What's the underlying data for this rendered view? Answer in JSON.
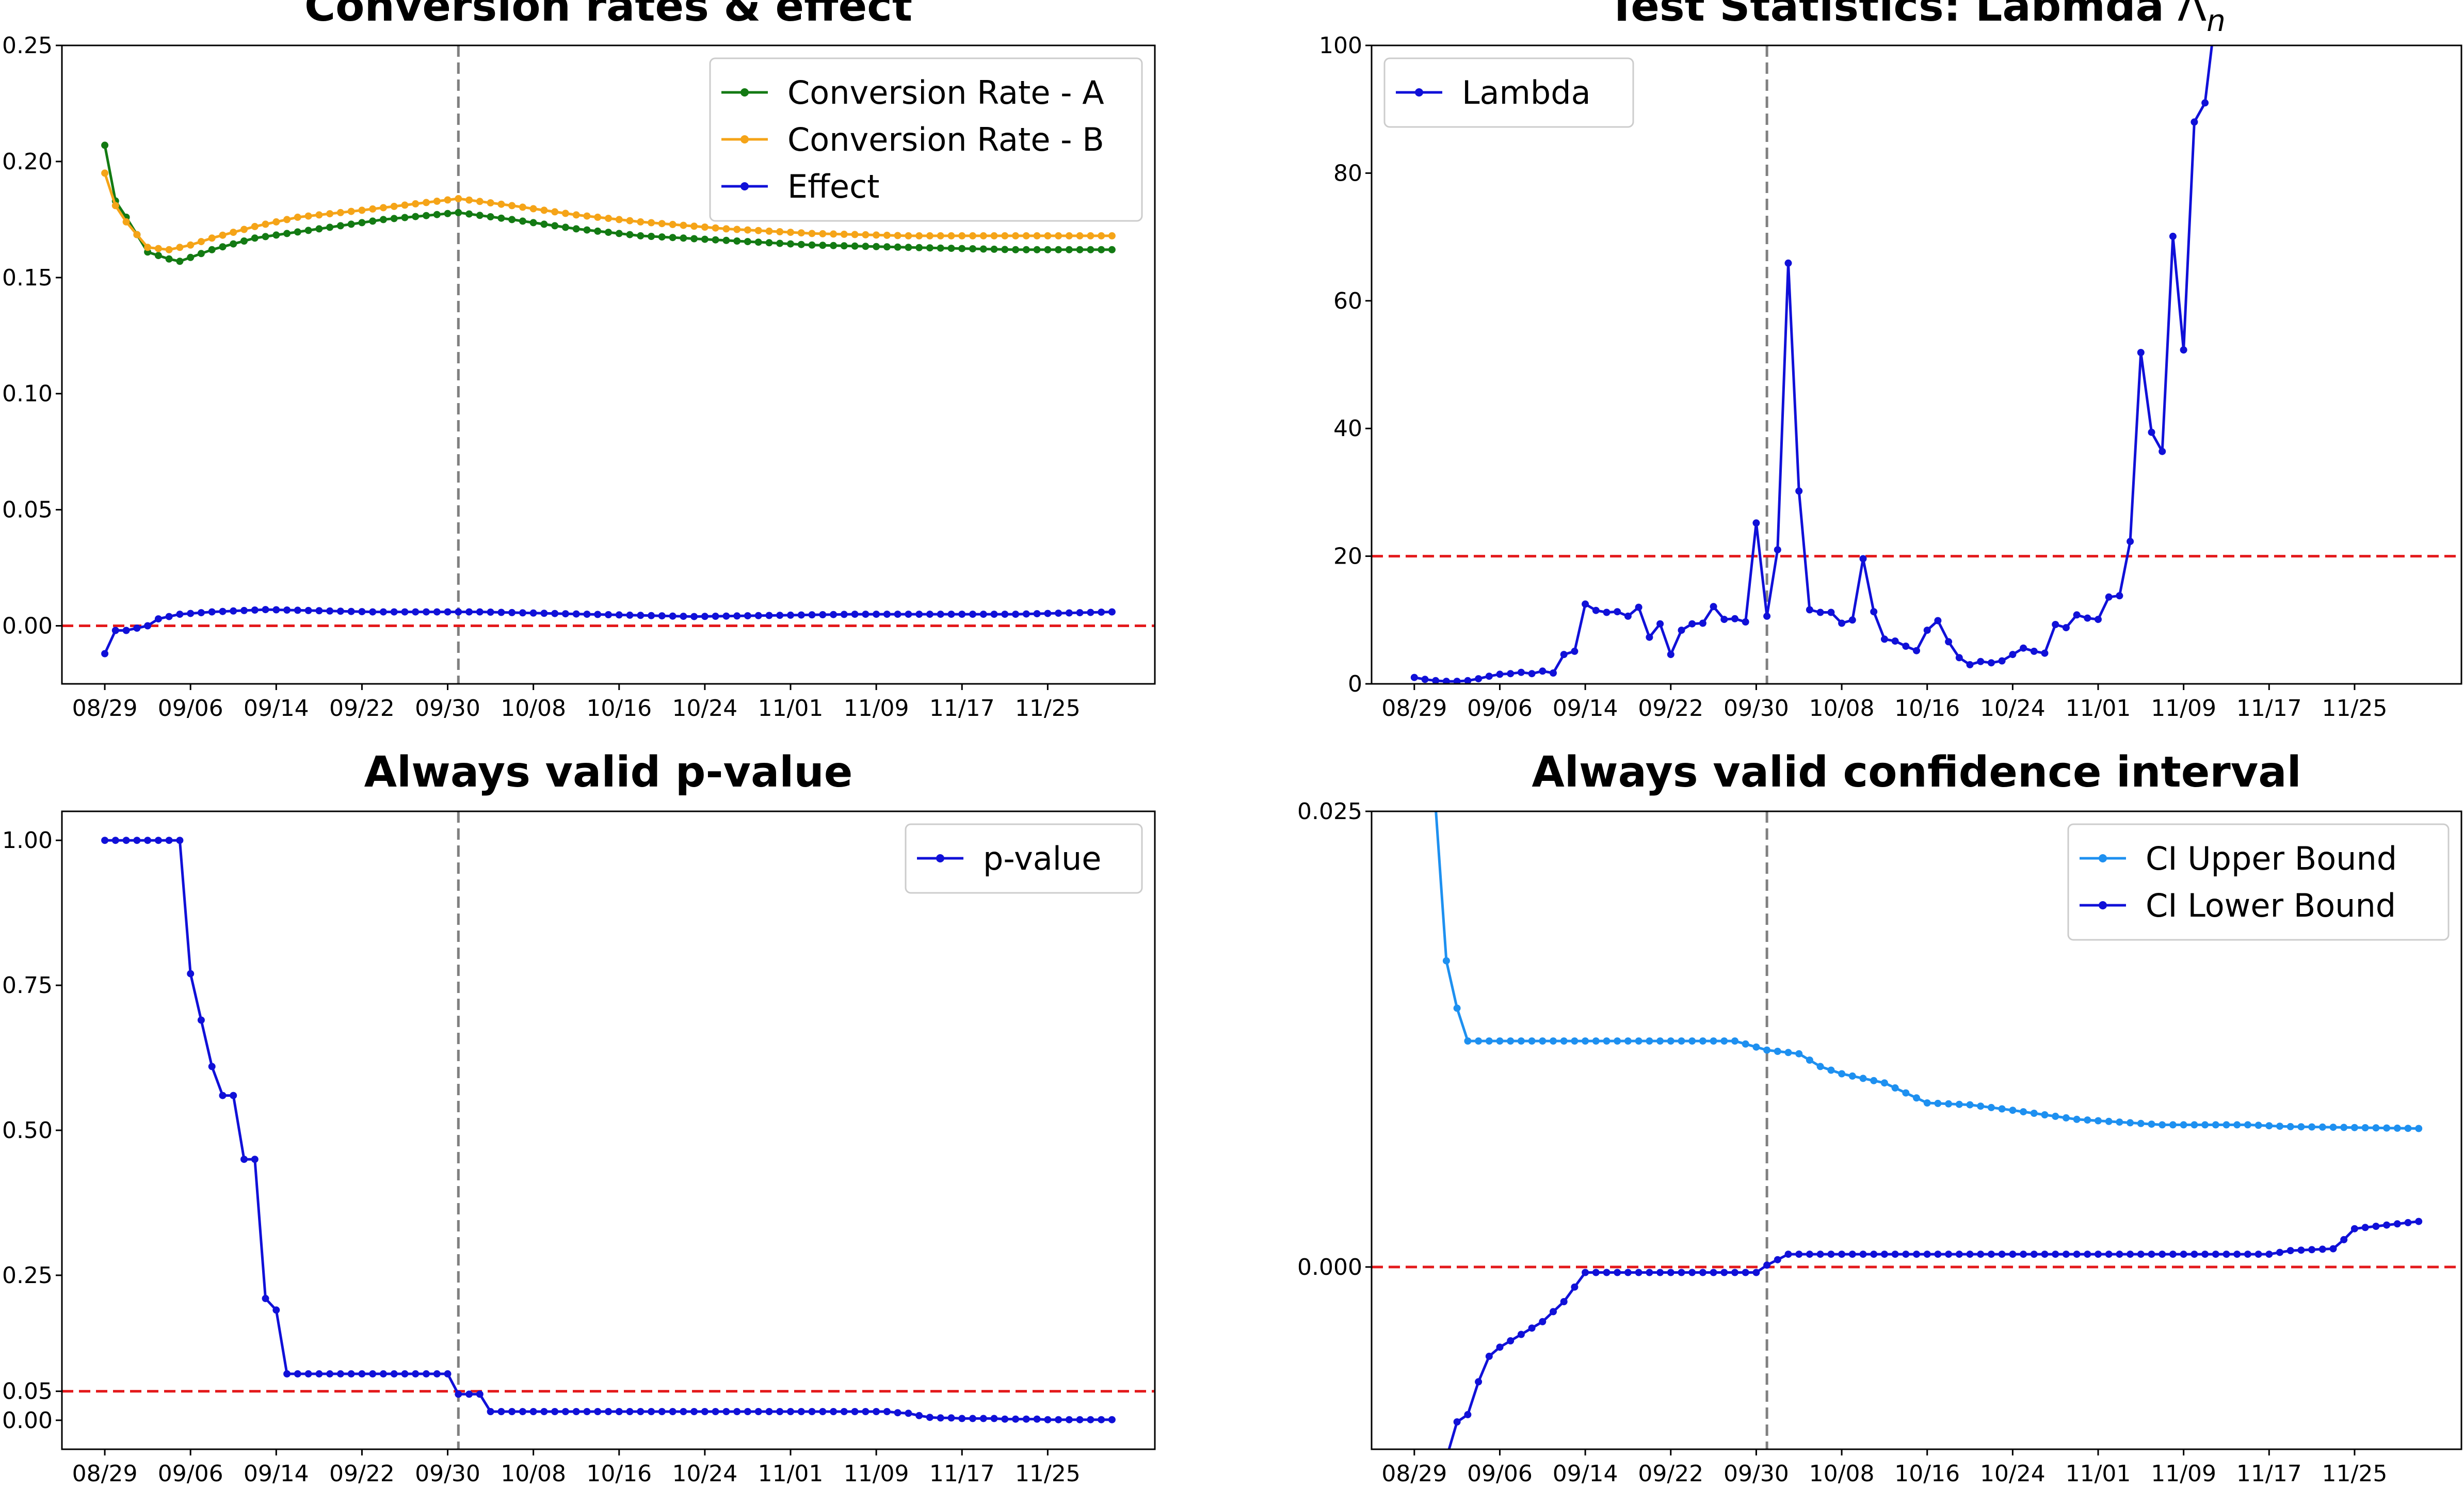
{
  "figure": {
    "panels": 4
  },
  "chart_data": [
    {
      "type": "line",
      "title": "Conversion rates & effect",
      "xlabel": "",
      "ylabel": "",
      "x_tick_labels": [
        "08/29",
        "09/06",
        "09/14",
        "09/22",
        "09/30",
        "10/08",
        "10/16",
        "10/24",
        "11/01",
        "11/09",
        "11/17",
        "11/25"
      ],
      "y_tick_labels": [
        "0.00",
        "0.05",
        "0.10",
        "0.15",
        "0.20",
        "0.25"
      ],
      "y_ticks": [
        0.0,
        0.05,
        0.1,
        0.15,
        0.2,
        0.25
      ],
      "xlim": [
        "08/25",
        "12/05"
      ],
      "ylim": [
        -0.025,
        0.25
      ],
      "x": {
        "start": "08/29",
        "end": "12/01",
        "step_days": 1
      },
      "vline": {
        "x": "10/01",
        "style": "dashed",
        "color": "#808080"
      },
      "hline": {
        "y": 0.0,
        "style": "dashed",
        "color": "#e31a1c"
      },
      "legend": {
        "position": "top-right"
      },
      "series": [
        {
          "name": "Conversion Rate - A",
          "color": "#137a13",
          "keypoints": [
            [
              0,
              0.207
            ],
            [
              1,
              0.183
            ],
            [
              2,
              0.176
            ],
            [
              4,
              0.161
            ],
            [
              6,
              0.158
            ],
            [
              7,
              0.157
            ],
            [
              10,
              0.162
            ],
            [
              14,
              0.167
            ],
            [
              20,
              0.171
            ],
            [
              26,
              0.175
            ],
            [
              33,
              0.178
            ],
            [
              38,
              0.175
            ],
            [
              44,
              0.171
            ],
            [
              50,
              0.168
            ],
            [
              58,
              0.166
            ],
            [
              66,
              0.164
            ],
            [
              75,
              0.163
            ],
            [
              85,
              0.162
            ],
            [
              94,
              0.162
            ]
          ]
        },
        {
          "name": "Conversion Rate - B",
          "color": "#f5a418",
          "keypoints": [
            [
              0,
              0.195
            ],
            [
              1,
              0.181
            ],
            [
              2,
              0.174
            ],
            [
              4,
              0.163
            ],
            [
              6,
              0.162
            ],
            [
              8,
              0.164
            ],
            [
              10,
              0.167
            ],
            [
              14,
              0.172
            ],
            [
              18,
              0.176
            ],
            [
              24,
              0.179
            ],
            [
              33,
              0.184
            ],
            [
              38,
              0.181
            ],
            [
              44,
              0.177
            ],
            [
              50,
              0.174
            ],
            [
              58,
              0.171
            ],
            [
              66,
              0.169
            ],
            [
              75,
              0.168
            ],
            [
              85,
              0.168
            ],
            [
              94,
              0.168
            ]
          ]
        },
        {
          "name": "Effect",
          "color": "#1010d8",
          "keypoints": [
            [
              0,
              -0.012
            ],
            [
              1,
              -0.002
            ],
            [
              2,
              -0.002
            ],
            [
              4,
              0.0
            ],
            [
              5,
              0.003
            ],
            [
              7,
              0.005
            ],
            [
              10,
              0.006
            ],
            [
              15,
              0.007
            ],
            [
              25,
              0.006
            ],
            [
              35,
              0.006
            ],
            [
              45,
              0.005
            ],
            [
              55,
              0.004
            ],
            [
              70,
              0.005
            ],
            [
              85,
              0.005
            ],
            [
              94,
              0.006
            ]
          ]
        }
      ]
    },
    {
      "type": "line",
      "title": "Test Statistics: Labmda",
      "title_symbol": "Λ",
      "title_symbol_sub": "n",
      "xlabel": "",
      "ylabel": "",
      "x_tick_labels": [
        "08/29",
        "09/06",
        "09/14",
        "09/22",
        "09/30",
        "10/08",
        "10/16",
        "10/24",
        "11/01",
        "11/09",
        "11/17",
        "11/25"
      ],
      "y_tick_labels": [
        "0",
        "20",
        "40",
        "60",
        "80",
        "100"
      ],
      "y_ticks": [
        0,
        20,
        40,
        60,
        80,
        100
      ],
      "xlim": [
        "08/25",
        "12/05"
      ],
      "ylim": [
        0,
        100
      ],
      "x": {
        "start": "08/29",
        "end": "11/13",
        "step_days": 1
      },
      "vline": {
        "x": "10/01",
        "style": "dashed",
        "color": "#808080"
      },
      "hline": {
        "y": 20,
        "style": "dashed",
        "color": "#e31a1c"
      },
      "legend": {
        "position": "top-left"
      },
      "series": [
        {
          "name": "Lambda",
          "color": "#1010d8",
          "values": [
            1.0,
            0.7,
            0.5,
            0.4,
            0.4,
            0.5,
            0.8,
            1.2,
            1.5,
            1.6,
            1.8,
            1.6,
            2.0,
            1.7,
            4.6,
            5.1,
            12.5,
            11.5,
            11.2,
            11.3,
            10.6,
            12.0,
            7.3,
            9.4,
            4.6,
            8.4,
            9.4,
            9.5,
            12.1,
            10.1,
            10.2,
            9.7,
            25.2,
            10.6,
            21.0,
            65.9,
            30.2,
            11.6,
            11.2,
            11.2,
            9.5,
            10.0,
            19.6,
            11.3,
            7.0,
            6.7,
            5.9,
            5.2,
            8.4,
            9.9,
            6.6,
            4.1,
            3.0,
            3.5,
            3.3,
            3.6,
            4.6,
            5.6,
            5.1,
            4.8,
            9.3,
            8.8,
            10.8,
            10.3,
            10.1,
            13.6,
            13.8,
            22.3,
            51.9,
            39.4,
            36.4,
            70.1,
            52.3,
            88.0,
            91.0,
            105.0
          ]
        }
      ]
    },
    {
      "type": "line",
      "title": "Always valid p-value",
      "xlabel": "",
      "ylabel": "",
      "x_tick_labels": [
        "08/29",
        "09/06",
        "09/14",
        "09/22",
        "09/30",
        "10/08",
        "10/16",
        "10/24",
        "11/01",
        "11/09",
        "11/17",
        "11/25"
      ],
      "y_tick_labels": [
        "0.00",
        "0.05",
        "0.25",
        "0.50",
        "0.75",
        "1.00"
      ],
      "y_ticks": [
        0.0,
        0.05,
        0.25,
        0.5,
        0.75,
        1.0
      ],
      "xlim": [
        "08/25",
        "12/05"
      ],
      "ylim": [
        -0.05,
        1.05
      ],
      "x": {
        "start": "08/29",
        "end": "12/01",
        "step_days": 1
      },
      "vline": {
        "x": "10/01",
        "style": "dashed",
        "color": "#808080"
      },
      "hline": {
        "y": 0.05,
        "style": "dashed",
        "color": "#e31a1c"
      },
      "legend": {
        "position": "top-right"
      },
      "series": [
        {
          "name": "p-value",
          "color": "#1010d8",
          "values": [
            1.0,
            1.0,
            1.0,
            1.0,
            1.0,
            1.0,
            1.0,
            1.0,
            0.77,
            0.69,
            0.61,
            0.56,
            0.56,
            0.45,
            0.45,
            0.21,
            0.19,
            0.08,
            0.08,
            0.08,
            0.08,
            0.08,
            0.08,
            0.08,
            0.08,
            0.08,
            0.08,
            0.08,
            0.08,
            0.08,
            0.08,
            0.08,
            0.08,
            0.045,
            0.045,
            0.045,
            0.015,
            0.015,
            0.015,
            0.015,
            0.015,
            0.015,
            0.015,
            0.015,
            0.015,
            0.015,
            0.015,
            0.015,
            0.015,
            0.015,
            0.015,
            0.015,
            0.015,
            0.015,
            0.015,
            0.015,
            0.015,
            0.015,
            0.015,
            0.015,
            0.015,
            0.015,
            0.015,
            0.015,
            0.015,
            0.015,
            0.015,
            0.015,
            0.015,
            0.015,
            0.015,
            0.015,
            0.015,
            0.015,
            0.013,
            0.012,
            0.008,
            0.005,
            0.004,
            0.004,
            0.003,
            0.003,
            0.003,
            0.003,
            0.002,
            0.002,
            0.002,
            0.002,
            0.001,
            0.001,
            0.001,
            0.001,
            0.001,
            0.001,
            0.001
          ]
        }
      ]
    },
    {
      "type": "line",
      "title": "Always valid confidence interval",
      "xlabel": "",
      "ylabel": "",
      "x_tick_labels": [
        "08/29",
        "09/06",
        "09/14",
        "09/22",
        "09/30",
        "10/08",
        "10/16",
        "10/24",
        "11/01",
        "11/09",
        "11/17",
        "11/25"
      ],
      "y_tick_labels": [
        "0.000",
        "0.025"
      ],
      "y_ticks": [
        0.0,
        0.025
      ],
      "xlim": [
        "08/25",
        "12/05"
      ],
      "ylim": [
        -0.01,
        0.025
      ],
      "x": {
        "start": "08/29",
        "end": "12/01",
        "step_days": 1
      },
      "vline": {
        "x": "10/01",
        "style": "dashed",
        "color": "#808080"
      },
      "hline": {
        "y": 0.0,
        "style": "dashed",
        "color": "#e31a1c"
      },
      "legend": {
        "position": "top-right"
      },
      "series": [
        {
          "name": "CI Upper Bound",
          "color": "#1e90f0",
          "keypoints": [
            [
              0,
              0.04
            ],
            [
              1,
              0.0335
            ],
            [
              2,
              0.0252
            ],
            [
              3,
              0.0168
            ],
            [
              4,
              0.0142
            ],
            [
              5,
              0.0124
            ],
            [
              30,
              0.0124
            ],
            [
              33,
              0.0119
            ],
            [
              36,
              0.0117
            ],
            [
              38,
              0.011
            ],
            [
              40,
              0.0106
            ],
            [
              44,
              0.0101
            ],
            [
              48,
              0.009
            ],
            [
              52,
              0.0089
            ],
            [
              56,
              0.0086
            ],
            [
              62,
              0.0081
            ],
            [
              70,
              0.0078
            ],
            [
              78,
              0.0078
            ],
            [
              82,
              0.0077
            ],
            [
              94,
              0.0076
            ]
          ]
        },
        {
          "name": "CI Lower Bound",
          "color": "#1010d8",
          "keypoints": [
            [
              0,
              -0.0155
            ],
            [
              1,
              -0.0137
            ],
            [
              2,
              -0.0125
            ],
            [
              4,
              -0.0085
            ],
            [
              5,
              -0.0081
            ],
            [
              6,
              -0.0063
            ],
            [
              7,
              -0.0049
            ],
            [
              8,
              -0.0044
            ],
            [
              10,
              -0.0037
            ],
            [
              12,
              -0.003
            ],
            [
              14,
              -0.0019
            ],
            [
              16,
              -0.0003
            ],
            [
              20,
              -0.0003
            ],
            [
              24,
              -0.0003
            ],
            [
              28,
              -0.0003
            ],
            [
              32,
              -0.0003
            ],
            [
              33,
              0.0001
            ],
            [
              35,
              0.0007
            ],
            [
              37,
              0.0007
            ],
            [
              80,
              0.0007
            ],
            [
              82,
              0.0009
            ],
            [
              86,
              0.001
            ],
            [
              87,
              0.0015
            ],
            [
              88,
              0.0021
            ],
            [
              94,
              0.0025
            ]
          ]
        }
      ]
    }
  ]
}
